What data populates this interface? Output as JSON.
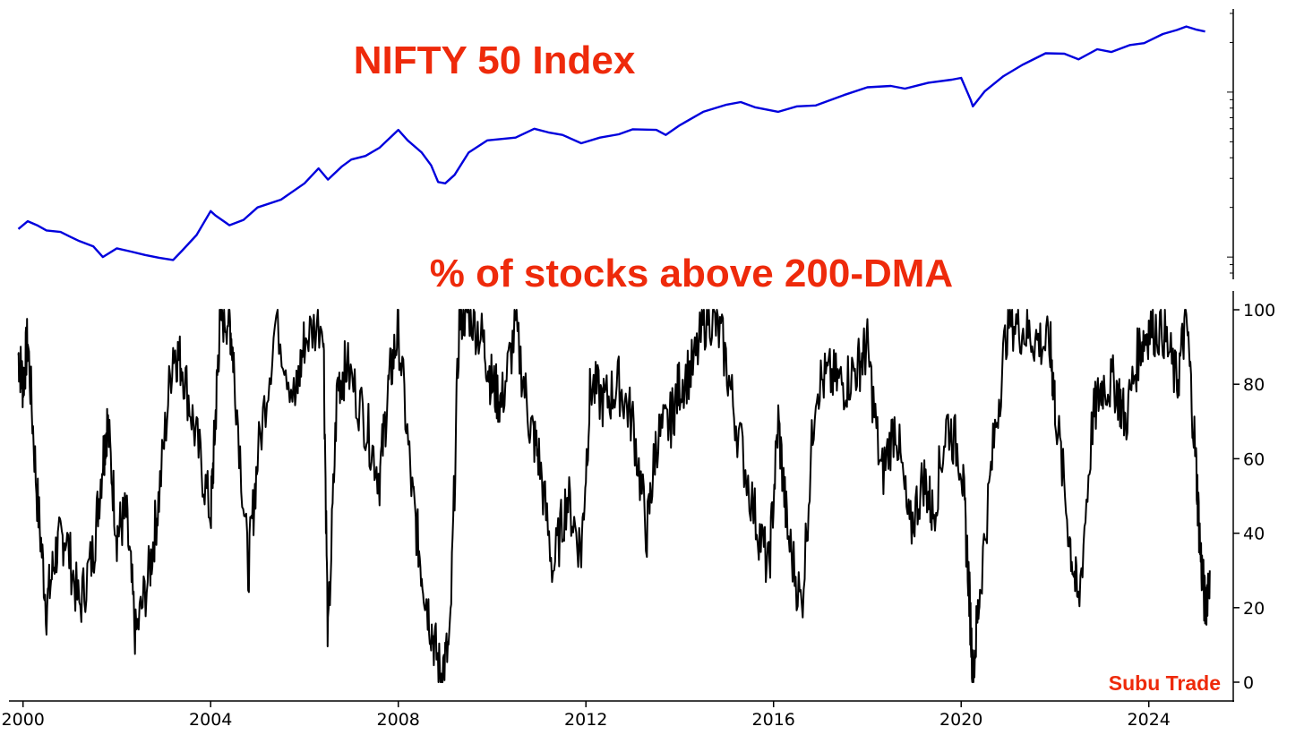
{
  "chart_data": [
    {
      "type": "line",
      "title": "NIFTY 50 Index",
      "yscale": "log",
      "ylim": [
        800,
        30000
      ],
      "xlim": [
        1999.7,
        2025.8
      ],
      "grid": false,
      "color": "#0000dd",
      "series": [
        {
          "name": "",
          "x": [
            1999.9,
            2000.1,
            2000.3,
            2000.5,
            2000.8,
            2001.0,
            2001.2,
            2001.5,
            2001.7,
            2002.0,
            2002.3,
            2002.6,
            2002.9,
            2003.2,
            2003.4,
            2003.7,
            2004.0,
            2004.1,
            2004.4,
            2004.7,
            2005.0,
            2005.5,
            2006.0,
            2006.3,
            2006.5,
            2006.8,
            2007.0,
            2007.3,
            2007.6,
            2008.0,
            2008.2,
            2008.5,
            2008.7,
            2008.85,
            2009.0,
            2009.2,
            2009.5,
            2009.9,
            2010.5,
            2010.9,
            2011.2,
            2011.5,
            2011.9,
            2012.3,
            2012.7,
            2013.0,
            2013.5,
            2013.7,
            2014.0,
            2014.5,
            2015.0,
            2015.3,
            2015.6,
            2016.1,
            2016.5,
            2016.9,
            2017.5,
            2018.0,
            2018.5,
            2018.8,
            2019.3,
            2019.8,
            2020.0,
            2020.2,
            2020.25,
            2020.5,
            2020.9,
            2021.3,
            2021.8,
            2022.2,
            2022.5,
            2022.9,
            2023.2,
            2023.6,
            2023.9,
            2024.3,
            2024.6,
            2024.8,
            2025.0,
            2025.2
          ],
          "y": [
            1480,
            1650,
            1560,
            1450,
            1420,
            1330,
            1250,
            1160,
            1000,
            1130,
            1080,
            1030,
            990,
            960,
            1100,
            1360,
            1900,
            1790,
            1560,
            1680,
            2000,
            2230,
            2800,
            3450,
            2950,
            3550,
            3900,
            4100,
            4600,
            5900,
            5100,
            4300,
            3600,
            2850,
            2800,
            3150,
            4300,
            5100,
            5300,
            6000,
            5700,
            5500,
            4900,
            5300,
            5550,
            5950,
            5900,
            5500,
            6300,
            7600,
            8400,
            8700,
            8100,
            7600,
            8200,
            8300,
            9600,
            10700,
            10900,
            10500,
            11400,
            11900,
            12200,
            9000,
            8200,
            10100,
            12500,
            14600,
            17200,
            17100,
            15800,
            18200,
            17500,
            19300,
            19800,
            22500,
            23800,
            25000,
            24000,
            23300
          ]
        }
      ]
    },
    {
      "type": "line",
      "title": "% of stocks above 200-DMA",
      "ylim": [
        0,
        100
      ],
      "xlim": [
        1999.7,
        2025.8
      ],
      "grid": false,
      "color": "#000000",
      "ytick_labels": [
        "100",
        "80",
        "60",
        "40",
        "20",
        "0"
      ],
      "ytick_values": [
        100,
        80,
        60,
        40,
        20,
        0
      ],
      "series": [
        {
          "name": "",
          "x": [
            1999.9,
            2000.0,
            2000.1,
            2000.3,
            2000.5,
            2000.7,
            2000.9,
            2001.2,
            2001.5,
            2001.7,
            2001.8,
            2002.0,
            2002.2,
            2002.4,
            2002.7,
            2002.9,
            2003.2,
            2003.4,
            2003.7,
            2004.0,
            2004.1,
            2004.2,
            2004.4,
            2004.5,
            2004.8,
            2005.0,
            2005.4,
            2005.8,
            2006.0,
            2006.4,
            2006.5,
            2006.7,
            2006.9,
            2007.3,
            2007.6,
            2007.8,
            2008.0,
            2008.3,
            2008.5,
            2008.7,
            2008.9,
            2009.1,
            2009.3,
            2009.5,
            2009.8,
            2010.0,
            2010.2,
            2010.5,
            2010.8,
            2011.0,
            2011.3,
            2011.6,
            2011.9,
            2012.1,
            2012.4,
            2012.7,
            2013.0,
            2013.3,
            2013.5,
            2013.8,
            2014.0,
            2014.3,
            2014.6,
            2014.9,
            2015.2,
            2015.6,
            2015.9,
            2016.1,
            2016.3,
            2016.6,
            2016.9,
            2017.2,
            2017.5,
            2017.8,
            2018.0,
            2018.3,
            2018.6,
            2018.9,
            2019.2,
            2019.4,
            2019.7,
            2020.0,
            2020.15,
            2020.25,
            2020.4,
            2020.7,
            2021.0,
            2021.3,
            2021.6,
            2021.9,
            2022.0,
            2022.3,
            2022.5,
            2022.8,
            2023.0,
            2023.3,
            2023.5,
            2023.8,
            2024.0,
            2024.3,
            2024.6,
            2024.8,
            2025.0,
            2025.1,
            2025.2,
            2025.3
          ],
          "y": [
            88,
            80,
            92,
            50,
            20,
            35,
            40,
            20,
            35,
            60,
            70,
            40,
            45,
            12,
            30,
            50,
            90,
            85,
            65,
            45,
            70,
            98,
            98,
            85,
            30,
            60,
            98,
            75,
            92,
            98,
            10,
            80,
            85,
            70,
            55,
            80,
            95,
            50,
            30,
            15,
            2,
            10,
            98,
            100,
            92,
            80,
            75,
            95,
            70,
            60,
            30,
            50,
            35,
            80,
            75,
            80,
            70,
            40,
            65,
            70,
            80,
            85,
            100,
            92,
            70,
            45,
            30,
            70,
            40,
            20,
            80,
            82,
            80,
            85,
            90,
            55,
            70,
            40,
            55,
            45,
            70,
            60,
            30,
            2,
            25,
            65,
            98,
            95,
            92,
            90,
            75,
            40,
            20,
            70,
            80,
            80,
            70,
            90,
            95,
            95,
            80,
            98,
            60,
            35,
            20,
            30
          ]
        }
      ]
    }
  ],
  "x_axis": {
    "tick_labels": [
      "2000",
      "2004",
      "2008",
      "2012",
      "2016",
      "2020",
      "2024"
    ],
    "tick_values": [
      2000,
      2004,
      2008,
      2012,
      2016,
      2020,
      2024
    ]
  },
  "watermark": "Subu Trade"
}
